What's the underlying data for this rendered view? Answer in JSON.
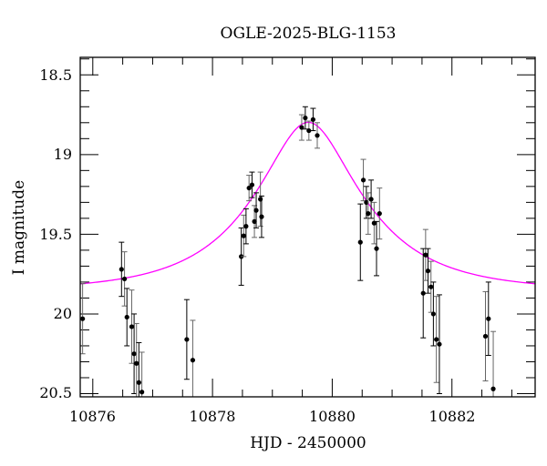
{
  "chart_data": {
    "type": "scatter",
    "title": "OGLE-2025-BLG-1153",
    "xlabel": "HJD - 2450000",
    "ylabel": "I magnitude",
    "xlim": [
      10875.79,
      10883.39
    ],
    "ylim": [
      20.52,
      18.39
    ],
    "y_inverted": true,
    "x_ticks": [
      10876,
      10878,
      10880,
      10882
    ],
    "x_tick_labels": [
      "10876",
      "10878",
      "10880",
      "10882"
    ],
    "x_minor_step": 0.5,
    "y_ticks": [
      18.5,
      19,
      19.5,
      20,
      20.5
    ],
    "y_tick_labels": [
      "18.5",
      "19",
      "19.5",
      "20",
      "20.5"
    ],
    "y_minor_step": 0.1,
    "grid": false,
    "colors": {
      "data": "#000000",
      "model": "#ff00ff"
    },
    "series": [
      {
        "kind": "points-with-errorbars",
        "x": [
          10875.83,
          10876.48,
          10876.53,
          10876.57,
          10876.65,
          10876.69,
          10876.73,
          10876.77,
          10876.82,
          10877.57,
          10877.67,
          10878.48,
          10878.52,
          10878.56,
          10878.61,
          10878.66,
          10878.7,
          10878.73,
          10878.8,
          10878.82,
          10879.49,
          10879.55,
          10879.61,
          10879.68,
          10879.75,
          10880.47,
          10880.52,
          10880.57,
          10880.6,
          10880.65,
          10880.7,
          10880.74,
          10880.79,
          10881.52,
          10881.56,
          10881.6,
          10881.65,
          10881.69,
          10881.74,
          10881.79,
          10882.56,
          10882.61,
          10882.69
        ],
        "y": [
          20.03,
          19.72,
          19.78,
          20.02,
          20.08,
          20.25,
          20.31,
          20.43,
          20.49,
          20.16,
          20.29,
          19.64,
          19.51,
          19.45,
          19.21,
          19.19,
          19.42,
          19.35,
          19.28,
          19.39,
          18.83,
          18.77,
          18.85,
          18.78,
          18.88,
          19.55,
          19.16,
          19.3,
          19.37,
          19.28,
          19.43,
          19.59,
          19.37,
          19.87,
          19.63,
          19.73,
          19.83,
          20.0,
          20.16,
          20.19,
          20.14,
          20.03,
          20.47
        ],
        "yerr": [
          0.22,
          0.17,
          0.17,
          0.18,
          0.23,
          0.25,
          0.25,
          0.25,
          0.25,
          0.25,
          0.25,
          0.18,
          0.13,
          0.11,
          0.08,
          0.08,
          0.1,
          0.11,
          0.17,
          0.13,
          0.08,
          0.07,
          0.06,
          0.07,
          0.08,
          0.24,
          0.13,
          0.1,
          0.13,
          0.12,
          0.13,
          0.17,
          0.16,
          0.28,
          0.16,
          0.14,
          0.16,
          0.2,
          0.27,
          0.31,
          0.28,
          0.23,
          0.36
        ]
      },
      {
        "kind": "model-curve",
        "model": "point-lens",
        "t0": 10879.6,
        "u0": 0.4,
        "tE": 1.7,
        "baseline_mag": 19.855
      }
    ]
  }
}
